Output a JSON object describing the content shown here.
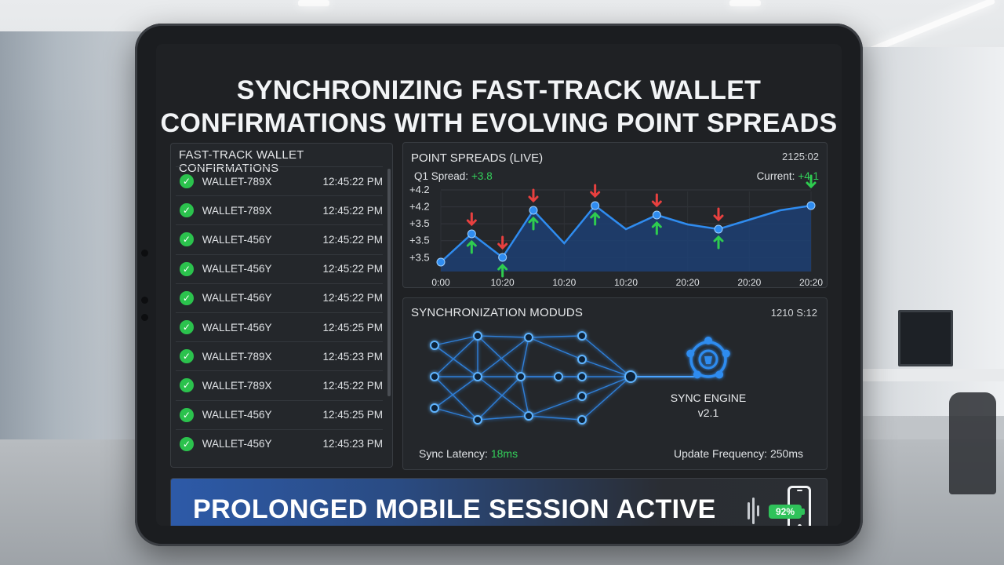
{
  "header": {
    "title_line1": "SYNCHRONIZING FAST-TRACK WALLET",
    "title_line2": "CONFIRMATIONS WITH EVOLVING POINT SPREADS"
  },
  "wallet_panel": {
    "title": "FAST-TRACK WALLET CONFIRMATIONS",
    "rows": [
      {
        "id": "WALLET-789X",
        "time": "12:45:22 PM"
      },
      {
        "id": "WALLET-789X",
        "time": "12:45:22 PM"
      },
      {
        "id": "WALLET-456Y",
        "time": "12:45:22 PM"
      },
      {
        "id": "WALLET-456Y",
        "time": "12:45:22 PM"
      },
      {
        "id": "WALLET-456Y",
        "time": "12:45:22 PM"
      },
      {
        "id": "WALLET-456Y",
        "time": "12:45:25 PM"
      },
      {
        "id": "WALLET-789X",
        "time": "12:45:23 PM"
      },
      {
        "id": "WALLET-789X",
        "time": "12:45:22 PM"
      },
      {
        "id": "WALLET-456Y",
        "time": "12:45:25 PM"
      },
      {
        "id": "WALLET-456Y",
        "time": "12:45:23 PM"
      }
    ]
  },
  "spread_panel": {
    "title": "POINT SPREADS (LIVE)",
    "timestamp": "2125:02",
    "q1_label": "Q1 Spread:",
    "q1_value": "+3.8",
    "current_label": "Current:",
    "current_value": "+4.1"
  },
  "chart_data": {
    "type": "area",
    "y_tick_labels": [
      "+4.2",
      "+4.2",
      "+3.5",
      "+3.5",
      "+3.5"
    ],
    "x_tick_labels": [
      "0:00",
      "10:20",
      "10:20",
      "10:20",
      "20:20",
      "20:20",
      "20:20"
    ],
    "x": [
      0,
      1,
      2,
      3,
      4,
      5,
      6,
      7,
      8,
      9,
      10,
      11,
      12
    ],
    "values": [
      3.5,
      3.8,
      3.55,
      4.05,
      3.7,
      4.1,
      3.85,
      4.0,
      3.9,
      3.85,
      3.95,
      4.05,
      4.1
    ],
    "markers_down": [
      1,
      2,
      3,
      5,
      7,
      9
    ],
    "markers_up": [
      1,
      2,
      3,
      5,
      7,
      9,
      12
    ],
    "colors": {
      "line": "#2f8cf0",
      "fill": "#1d3f73",
      "up": "#2ecc4f",
      "down": "#e8403f"
    },
    "grid": true
  },
  "sync_panel": {
    "title": "SYNCHRONIZATION MODUDS",
    "timestamp": "1210 S:12",
    "engine_name": "SYNC ENGINE",
    "engine_version": "v2.1",
    "latency_label": "Sync Latency:",
    "latency_value": "18ms",
    "frequency_label": "Update Frequency:",
    "frequency_value": "250ms"
  },
  "banner": {
    "text": "PROLONGED MOBILE SESSION ACTIVE",
    "battery": "92%"
  },
  "icons": {
    "check": "check-circle-icon",
    "engine": "gear-engine-icon",
    "phone": "phone-icon"
  }
}
